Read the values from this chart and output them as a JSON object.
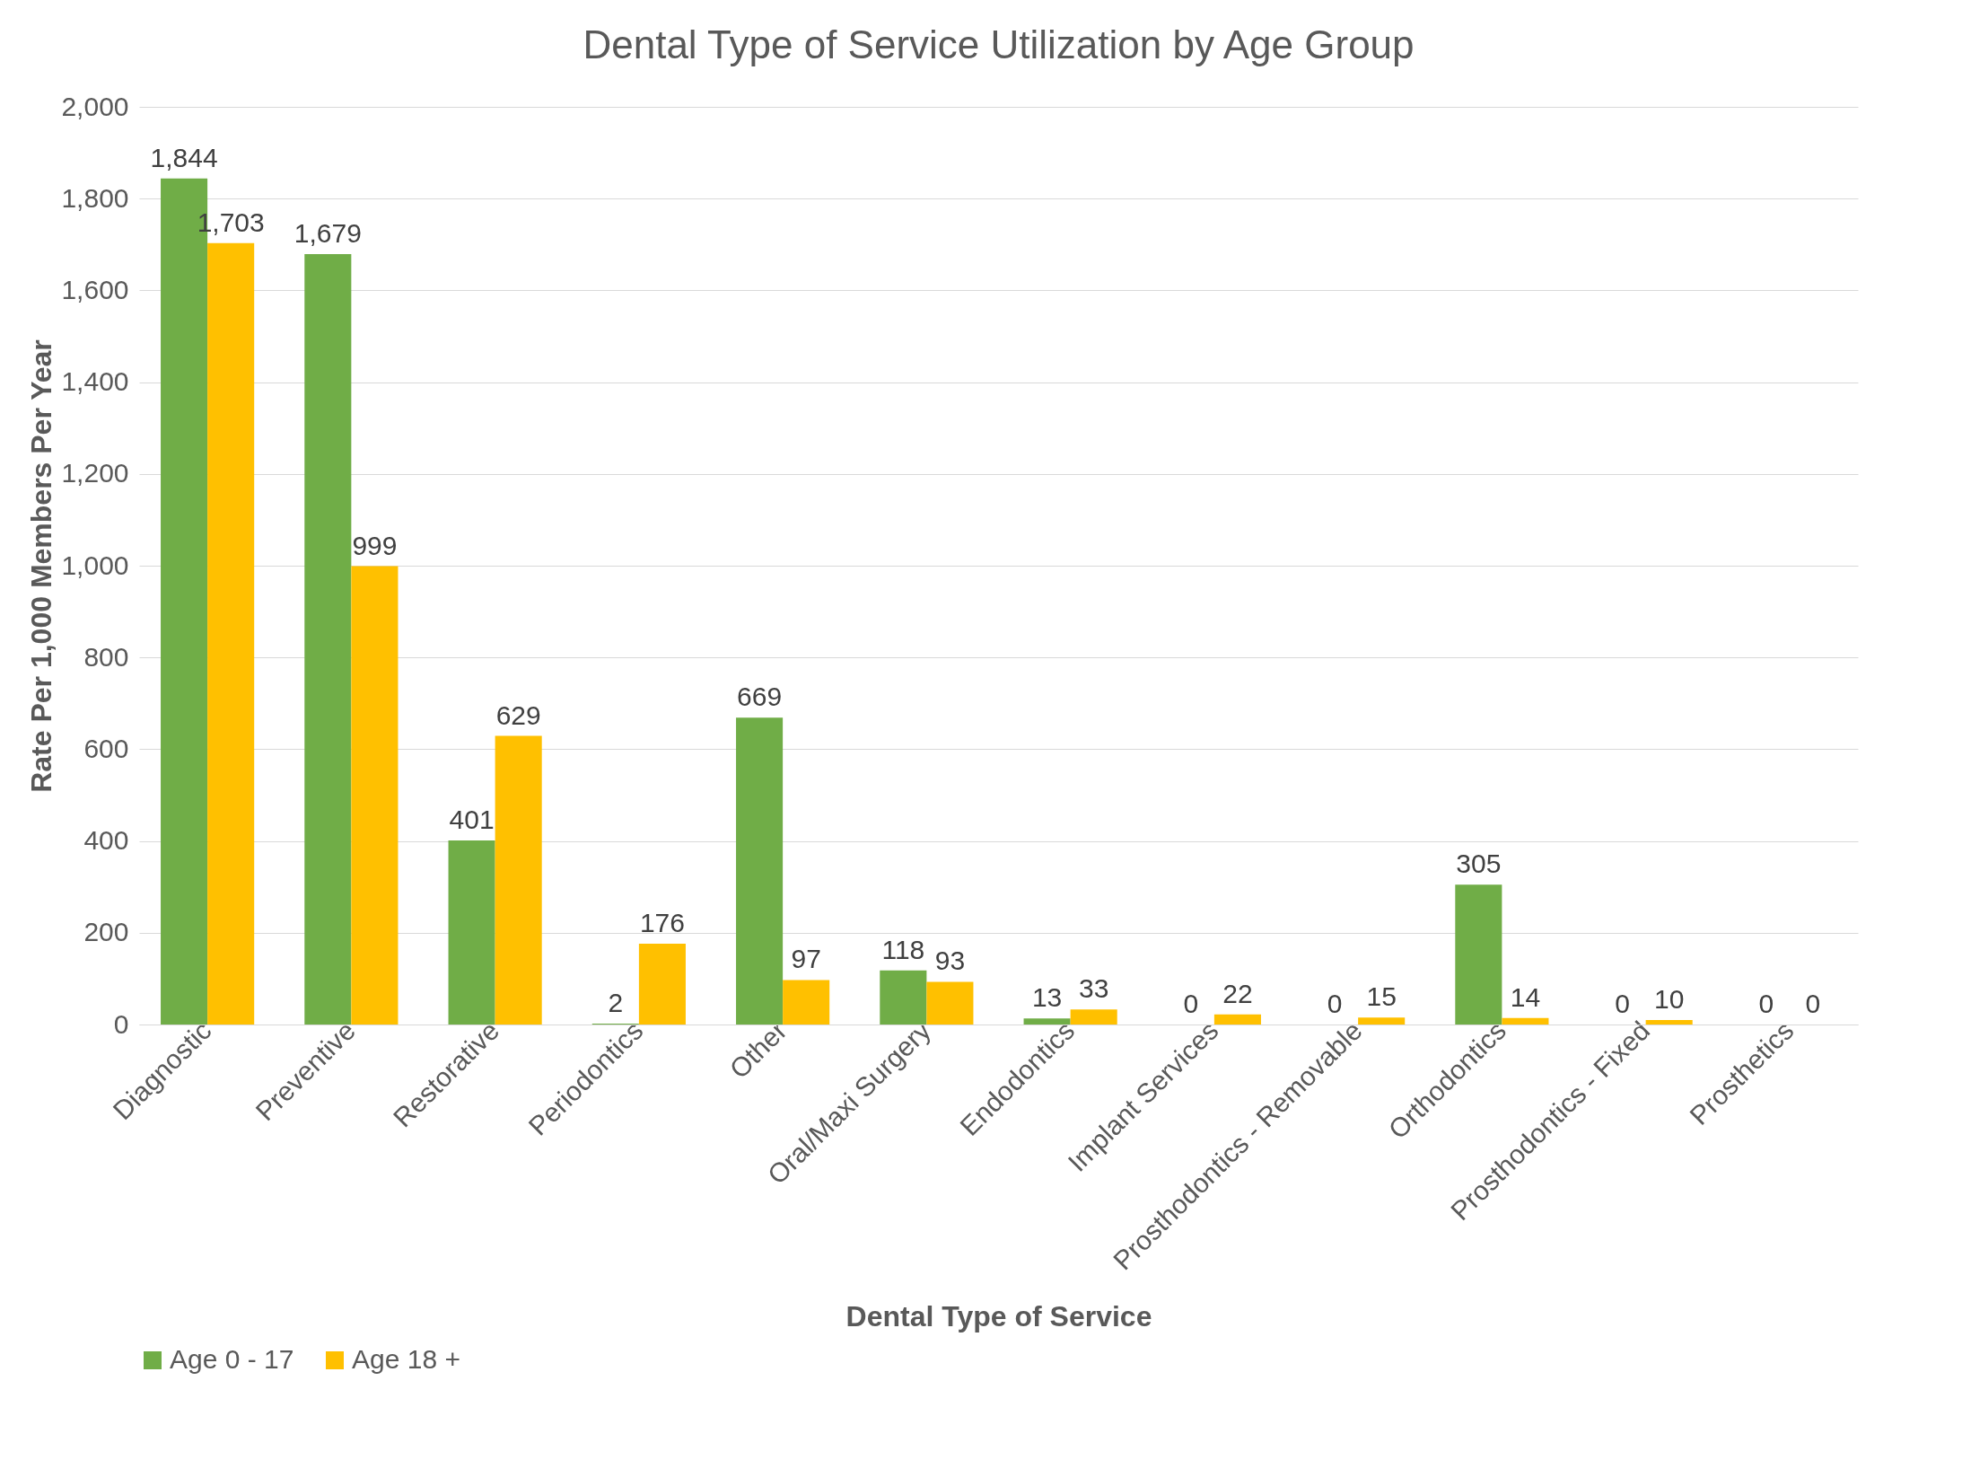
{
  "chart_data": {
    "type": "bar",
    "title": "Dental Type of Service Utilization by Age Group",
    "xlabel": "Dental Type of Service",
    "ylabel": "Rate Per 1,000 Members Per Year",
    "categories": [
      "Diagnostic",
      "Preventive",
      "Restorative",
      "Periodontics",
      "Other",
      "Oral/Maxi Surgery",
      "Endodontics",
      "Implant Services",
      "Prosthodontics - Removable",
      "Orthodontics",
      "Prosthodontics - Fixed",
      "Prosthetics"
    ],
    "series": [
      {
        "name": "Age 0 - 17",
        "color": "#70ad47",
        "values": [
          1844,
          1679,
          401,
          2,
          669,
          118,
          13,
          0,
          0,
          305,
          0,
          0
        ],
        "value_labels": [
          "1,844",
          "1,679",
          "401",
          "2",
          "669",
          "118",
          "13",
          "0",
          "0",
          "305",
          "0",
          "0"
        ]
      },
      {
        "name": "Age 18 +",
        "color": "#ffc000",
        "values": [
          1703,
          999,
          629,
          176,
          97,
          93,
          33,
          22,
          15,
          14,
          10,
          0
        ],
        "value_labels": [
          "1,703",
          "999",
          "629",
          "176",
          "97",
          "93",
          "33",
          "22",
          "15",
          "14",
          "10",
          "0"
        ]
      }
    ],
    "ylim": [
      0,
      2000
    ],
    "yticks": [
      {
        "value": 0,
        "label": "0"
      },
      {
        "value": 200,
        "label": "200"
      },
      {
        "value": 400,
        "label": "400"
      },
      {
        "value": 600,
        "label": "600"
      },
      {
        "value": 800,
        "label": "800"
      },
      {
        "value": 1000,
        "label": "1,000"
      },
      {
        "value": 1200,
        "label": "1,200"
      },
      {
        "value": 1400,
        "label": "1,400"
      },
      {
        "value": 1600,
        "label": "1,600"
      },
      {
        "value": 1800,
        "label": "1,800"
      },
      {
        "value": 2000,
        "label": "2,000"
      }
    ],
    "grid": "y",
    "legend": "bottom"
  }
}
